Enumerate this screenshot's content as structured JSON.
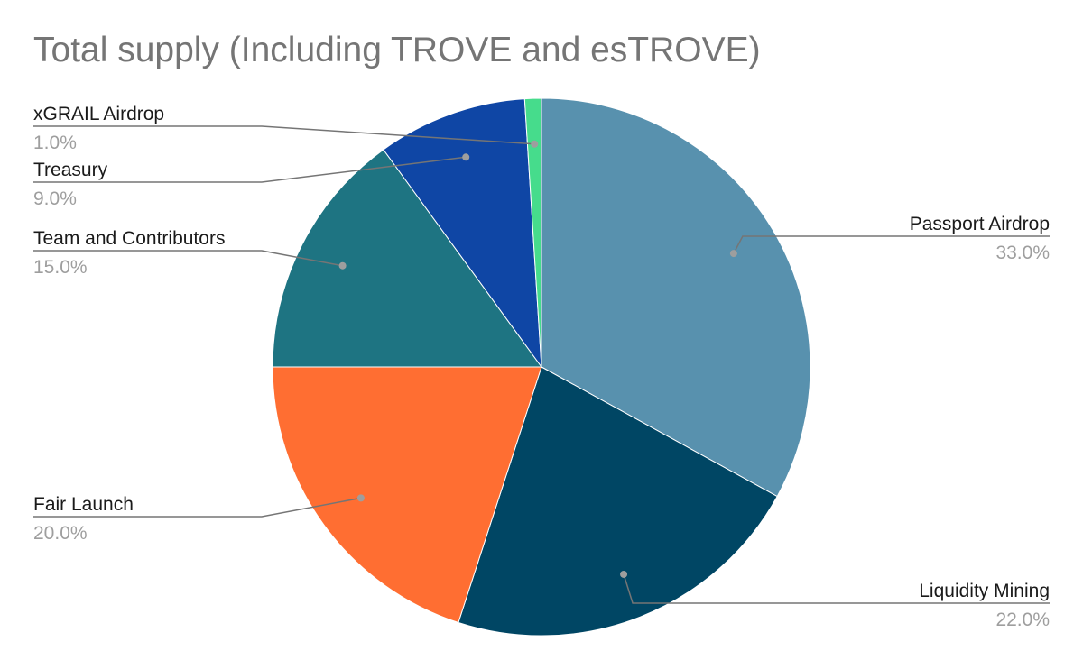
{
  "chart_data": {
    "type": "pie",
    "title": "Total supply (Including TROVE and esTROVE)",
    "slices": [
      {
        "label": "Passport Airdrop",
        "value": 33.0,
        "display": "33.0%",
        "color": "#5891ae",
        "side": "right"
      },
      {
        "label": "Liquidity Mining",
        "value": 22.0,
        "display": "22.0%",
        "color": "#004664",
        "side": "right"
      },
      {
        "label": "Fair Launch",
        "value": 20.0,
        "display": "20.0%",
        "color": "#ff6e32",
        "side": "left"
      },
      {
        "label": "Team and Contributors",
        "value": 15.0,
        "display": "15.0%",
        "color": "#1e7482",
        "side": "left"
      },
      {
        "label": "Treasury",
        "value": 9.0,
        "display": "9.0%",
        "color": "#0f46a5",
        "side": "left"
      },
      {
        "label": "xGRAIL Airdrop",
        "value": 1.0,
        "display": "1.0%",
        "color": "#46dc8c",
        "side": "left"
      }
    ],
    "legend": "none",
    "start_angle": "12 o'clock",
    "direction": "clockwise"
  }
}
